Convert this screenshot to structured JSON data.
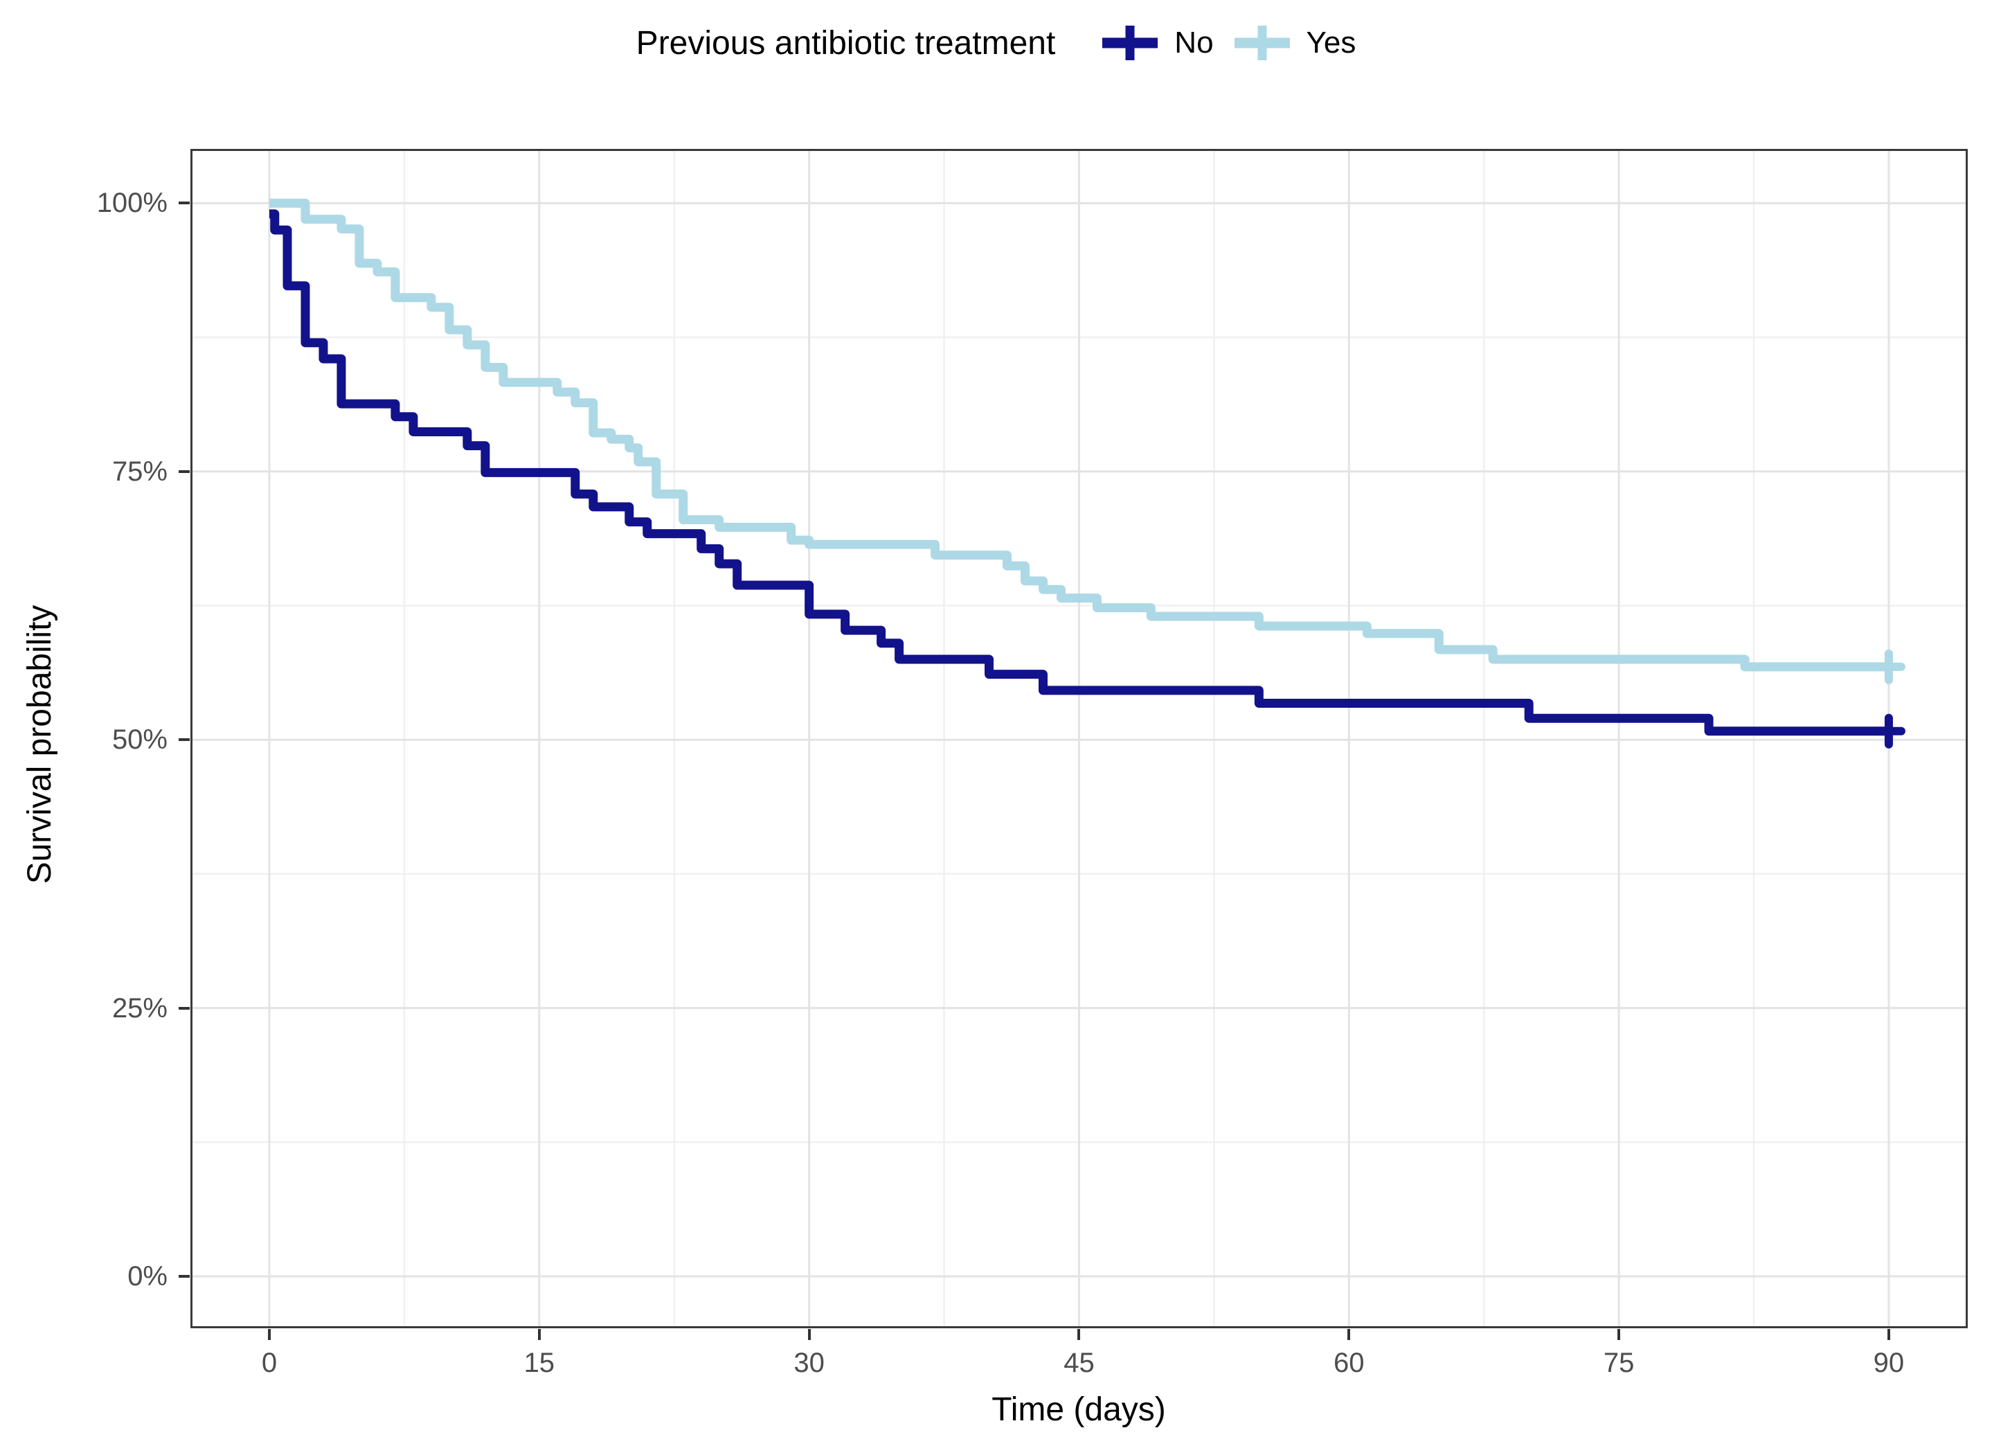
{
  "legend": {
    "title": "Previous antibiotic treatment",
    "items": [
      {
        "label": "No",
        "color": "#12128C"
      },
      {
        "label": "Yes",
        "color": "#ADD8E6"
      }
    ]
  },
  "chart_data": {
    "type": "line",
    "variant": "kaplan-meier-step-survival",
    "title": "Previous antibiotic treatment",
    "xlabel": "Time (days)",
    "ylabel": "Survival probability",
    "xlim": [
      0,
      90
    ],
    "ylim": [
      0,
      100
    ],
    "grid": true,
    "legend_position": "top",
    "x_ticks": {
      "values": [
        0,
        15,
        30,
        45,
        60,
        75,
        90
      ],
      "labels": [
        "0",
        "15",
        "30",
        "45",
        "60",
        "75",
        "90"
      ],
      "minor": [
        7.5,
        22.5,
        37.5,
        52.5,
        67.5,
        82.5
      ]
    },
    "y_ticks": {
      "values": [
        0,
        25,
        50,
        75,
        100
      ],
      "labels": [
        "0%",
        "25%",
        "50%",
        "75%",
        "100%"
      ],
      "minor": [
        12.5,
        37.5,
        62.5,
        87.5
      ]
    },
    "series": [
      {
        "name": "No",
        "color": "#12128C",
        "censor": {
          "time": 90,
          "value": 50.8
        },
        "points": [
          [
            0,
            99
          ],
          [
            0.3,
            97.5
          ],
          [
            1,
            92.3
          ],
          [
            2,
            87
          ],
          [
            3,
            85.5
          ],
          [
            4,
            81.3
          ],
          [
            7,
            80.1
          ],
          [
            8,
            78.7
          ],
          [
            11,
            77.4
          ],
          [
            12,
            74.9
          ],
          [
            17,
            72.9
          ],
          [
            18,
            71.7
          ],
          [
            20,
            70.3
          ],
          [
            21,
            69.2
          ],
          [
            24,
            67.8
          ],
          [
            25,
            66.4
          ],
          [
            26,
            64.4
          ],
          [
            30,
            61.7
          ],
          [
            32,
            60.2
          ],
          [
            34,
            59
          ],
          [
            35,
            57.5
          ],
          [
            40,
            56.1
          ],
          [
            43,
            54.6
          ],
          [
            55,
            53.4
          ],
          [
            70,
            52
          ],
          [
            80,
            50.8
          ]
        ]
      },
      {
        "name": "Yes",
        "color": "#ADD8E6",
        "censor": {
          "time": 90,
          "value": 56.8
        },
        "points": [
          [
            0,
            100
          ],
          [
            2,
            98.5
          ],
          [
            4,
            97.6
          ],
          [
            5,
            94.4
          ],
          [
            6,
            93.6
          ],
          [
            7,
            91.2
          ],
          [
            9,
            90.3
          ],
          [
            10,
            88.2
          ],
          [
            11,
            86.8
          ],
          [
            12,
            84.7
          ],
          [
            13,
            83.3
          ],
          [
            16,
            82.4
          ],
          [
            17,
            81.4
          ],
          [
            18,
            78.6
          ],
          [
            19,
            78
          ],
          [
            20,
            77.2
          ],
          [
            20.5,
            75.9
          ],
          [
            21.5,
            72.9
          ],
          [
            23,
            70.5
          ],
          [
            25,
            69.8
          ],
          [
            29,
            68.6
          ],
          [
            30,
            68.2
          ],
          [
            37,
            67.2
          ],
          [
            41,
            66.2
          ],
          [
            42,
            64.8
          ],
          [
            43,
            64
          ],
          [
            44,
            63.2
          ],
          [
            46,
            62.3
          ],
          [
            49,
            61.5
          ],
          [
            55,
            60.6
          ],
          [
            61,
            59.9
          ],
          [
            65,
            58.4
          ],
          [
            68,
            57.5
          ],
          [
            82,
            56.8
          ]
        ]
      }
    ],
    "colors": {
      "grid_major": "#E3E3E3",
      "grid_minor": "#F0F0F0",
      "panel_border": "#3A3A3A",
      "tick_mark": "#333333",
      "tick_label": "#4D4D4D",
      "axis_title": "#000000",
      "background": "#FFFFFF"
    }
  }
}
